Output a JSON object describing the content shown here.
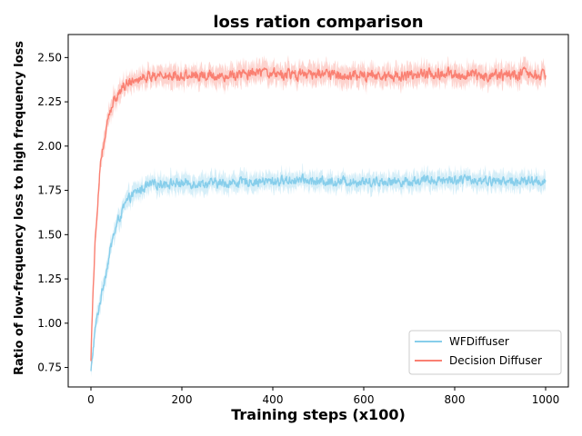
{
  "chart_data": {
    "type": "line",
    "title": "loss ration comparison",
    "xlabel": "Training steps (x100)",
    "ylabel": "Ratio of low-frequency loss to high frequency loss",
    "xlim": [
      -50,
      1050
    ],
    "ylim": [
      0.64,
      2.63
    ],
    "xticks": [
      0,
      200,
      400,
      600,
      800,
      1000
    ],
    "yticks": [
      0.75,
      1.0,
      1.25,
      1.5,
      1.75,
      2.0,
      2.25,
      2.5
    ],
    "ytick_labels": [
      "0.75",
      "1.00",
      "1.25",
      "1.50",
      "1.75",
      "2.00",
      "2.25",
      "2.50"
    ],
    "grid": false,
    "legend_position": "bottom-right",
    "series": [
      {
        "name": "WFDiffuser",
        "color": "#87ceeb",
        "shaded_band": true,
        "x": [
          0,
          5,
          10,
          20,
          30,
          40,
          50,
          60,
          70,
          80,
          90,
          100,
          120,
          150,
          200,
          250,
          300,
          350,
          400,
          450,
          500,
          550,
          600,
          650,
          700,
          750,
          800,
          850,
          900,
          950,
          1000
        ],
        "values": [
          0.72,
          0.86,
          0.98,
          1.12,
          1.25,
          1.38,
          1.5,
          1.58,
          1.64,
          1.69,
          1.72,
          1.74,
          1.77,
          1.79,
          1.79,
          1.79,
          1.79,
          1.8,
          1.8,
          1.81,
          1.8,
          1.8,
          1.8,
          1.8,
          1.8,
          1.81,
          1.81,
          1.81,
          1.8,
          1.8,
          1.8
        ],
        "noise_amplitude": 0.04
      },
      {
        "name": "Decision Diffuser",
        "color": "#fa8072",
        "shaded_band": true,
        "x": [
          0,
          5,
          10,
          15,
          20,
          30,
          40,
          50,
          60,
          70,
          80,
          100,
          120,
          150,
          200,
          250,
          300,
          350,
          400,
          450,
          500,
          550,
          600,
          650,
          700,
          750,
          800,
          850,
          900,
          950,
          1000
        ],
        "values": [
          0.81,
          1.22,
          1.5,
          1.7,
          1.88,
          2.05,
          2.17,
          2.25,
          2.3,
          2.33,
          2.36,
          2.38,
          2.39,
          2.4,
          2.4,
          2.4,
          2.4,
          2.41,
          2.41,
          2.4,
          2.41,
          2.4,
          2.4,
          2.4,
          2.4,
          2.41,
          2.41,
          2.4,
          2.4,
          2.41,
          2.4
        ],
        "noise_amplitude": 0.045
      }
    ]
  }
}
